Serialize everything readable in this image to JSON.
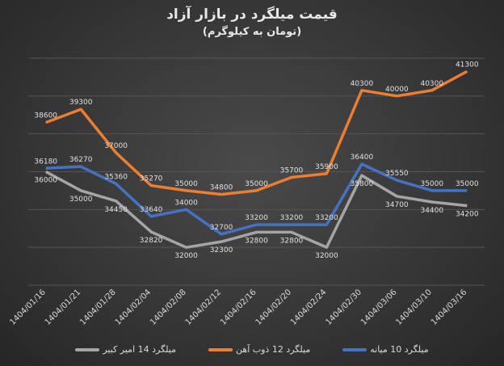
{
  "chart_data": {
    "type": "line",
    "title": "قیمت میلگرد در بازار آزاد",
    "subtitle": "(تومان به کیلوگرم)",
    "categories": [
      "1404/01/16",
      "1404/01/21",
      "1404/01/28",
      "1404/02/04",
      "1404/02/08",
      "1404/02/12",
      "1404/02/16",
      "1404/02/20",
      "1404/02/24",
      "1404/02/30",
      "1404/03/06",
      "1404/03/10",
      "1404/03/16"
    ],
    "ylim": [
      30000,
      42000
    ],
    "grid": true,
    "legend_position": "bottom",
    "series": [
      {
        "name": "میلگرد 10 میانه",
        "color": "#4472c4",
        "values": [
          36180,
          36270,
          35360,
          33640,
          34000,
          32700,
          33200,
          33200,
          33200,
          36400,
          35550,
          35000,
          35000
        ]
      },
      {
        "name": "میلگرد 12 ذوب آهن",
        "color": "#ed7d31",
        "values": [
          38600,
          39300,
          37000,
          35270,
          35000,
          34800,
          35000,
          35700,
          35900,
          40300,
          40000,
          40300,
          41300
        ]
      },
      {
        "name": "میلگرد 14 امیر کبیر",
        "color": "#a5a5a5",
        "values": [
          36000,
          35000,
          34450,
          32820,
          32000,
          32300,
          32800,
          32800,
          32000,
          35800,
          34700,
          34400,
          34200
        ]
      }
    ]
  }
}
